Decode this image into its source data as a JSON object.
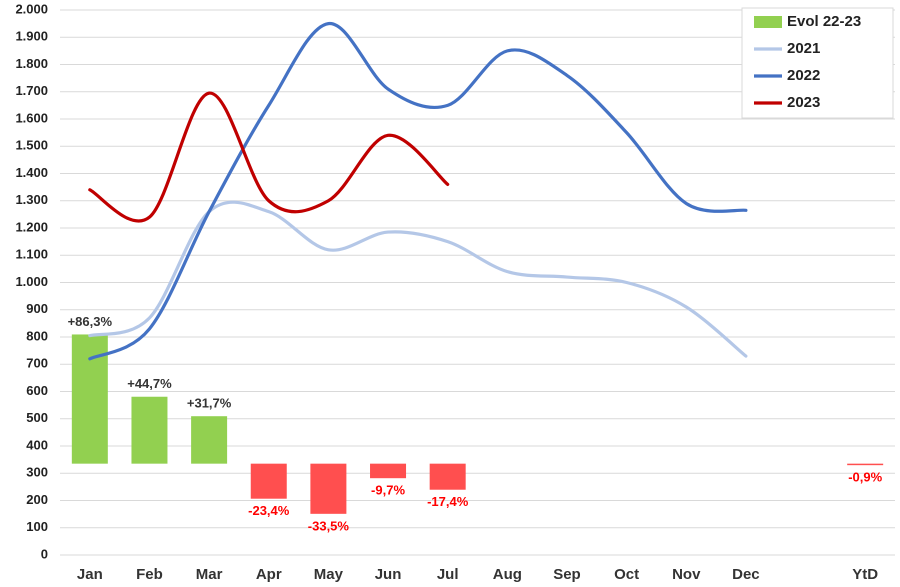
{
  "chart_data": {
    "type": "combo",
    "categories": [
      "Jan",
      "Feb",
      "Mar",
      "Apr",
      "May",
      "Jun",
      "Jul",
      "Aug",
      "Sep",
      "Oct",
      "Nov",
      "Dec",
      null,
      "YtD"
    ],
    "ylim": [
      0,
      2000
    ],
    "yticks": [
      0,
      100,
      200,
      300,
      400,
      500,
      600,
      700,
      800,
      900,
      {
        "value": 1000,
        "label": "1.000"
      },
      {
        "value": 1100,
        "label": "1.100"
      },
      {
        "value": 1200,
        "label": "1.200"
      },
      {
        "value": 1300,
        "label": "1.300"
      },
      {
        "value": 1400,
        "label": "1.400"
      },
      {
        "value": 1500,
        "label": "1.500"
      },
      {
        "value": 1600,
        "label": "1.600"
      },
      {
        "value": 1700,
        "label": "1.700"
      },
      {
        "value": 1800,
        "label": "1.800"
      },
      {
        "value": 1900,
        "label": "1.900"
      },
      {
        "value": 2000,
        "label": "2.000"
      }
    ],
    "y2lim": [
      -61,
      303
    ],
    "grid": true,
    "legend": "top-right",
    "series": [
      {
        "name": "Evol 22-23",
        "type": "bar",
        "axis": "y2",
        "color": "#92d050",
        "negative_color": "#ff4f4f",
        "values": [
          86.3,
          44.7,
          31.7,
          -23.4,
          -33.5,
          -9.7,
          -17.4,
          null,
          null,
          null,
          null,
          null,
          null,
          -0.9
        ],
        "value_labels": [
          "+86,3%",
          "+44,7%",
          "+31,7%",
          "-23,4%",
          "-33,5%",
          "-9,7%",
          "-17,4%",
          null,
          null,
          null,
          null,
          null,
          null,
          "-0,9%"
        ]
      },
      {
        "name": "2021",
        "type": "line",
        "color": "#b4c7e7",
        "values": [
          805,
          870,
          1260,
          1260,
          1120,
          1185,
          1150,
          1040,
          1020,
          1000,
          910,
          730,
          null,
          null
        ]
      },
      {
        "name": "2022",
        "type": "line",
        "color": "#4472c4",
        "values": [
          720,
          830,
          1260,
          1650,
          1950,
          1710,
          1650,
          1850,
          1760,
          1550,
          1290,
          1265,
          null,
          null
        ]
      },
      {
        "name": "2023",
        "type": "line",
        "color": "#c00000",
        "values": [
          1340,
          1240,
          1695,
          1300,
          1300,
          1540,
          1360,
          null,
          null,
          null,
          null,
          null,
          null,
          null
        ]
      }
    ]
  }
}
